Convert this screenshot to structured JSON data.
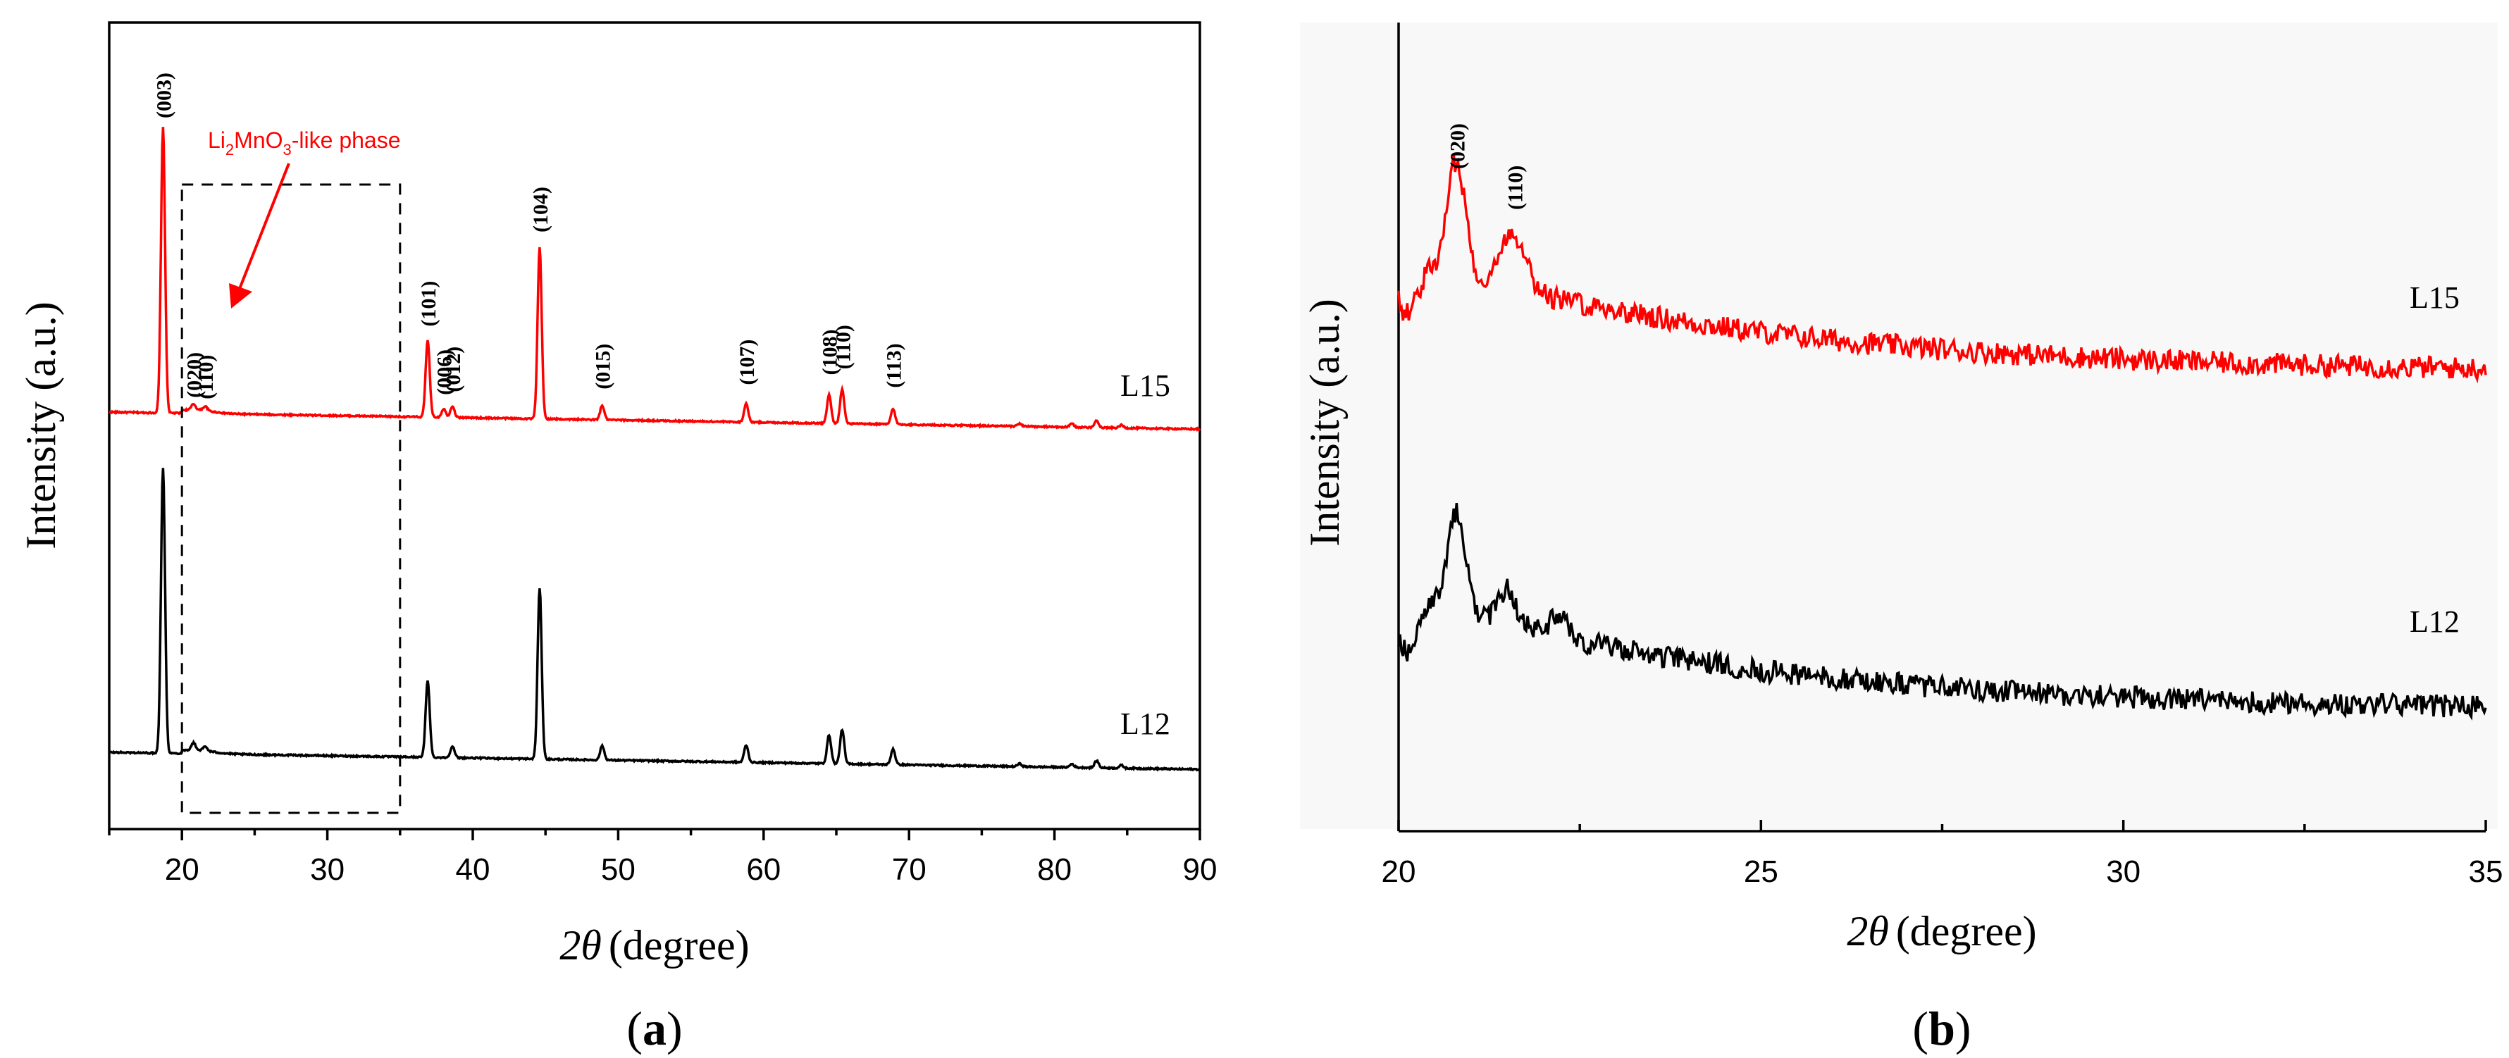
{
  "colors": {
    "L15": "#ff0000",
    "L12": "#000000",
    "annotation": "#ff0000"
  },
  "panel_labels": [
    "a",
    "b"
  ],
  "chart_data": [
    {
      "type": "line",
      "panel": "a",
      "xlabel_symbol": "2θ",
      "xlabel_unit": "(degree)",
      "ylabel": "Intensity (a.u.)",
      "xlim": [
        15,
        90
      ],
      "xticks": [
        20,
        30,
        40,
        50,
        60,
        70,
        80,
        90
      ],
      "y_tick_labels": false,
      "series": [
        {
          "name": "L15",
          "baseline": 100,
          "end_baseline": 94,
          "peaks": [
            [
              18.7,
              100
            ],
            [
              20.8,
              2
            ],
            [
              21.6,
              1.5
            ],
            [
              36.9,
              27
            ],
            [
              38.0,
              3
            ],
            [
              38.6,
              4
            ],
            [
              44.6,
              60
            ],
            [
              48.9,
              5
            ],
            [
              58.8,
              6.5
            ],
            [
              64.5,
              10
            ],
            [
              65.4,
              12
            ],
            [
              68.9,
              5.5
            ],
            [
              77.6,
              1
            ],
            [
              81.2,
              1.2
            ],
            [
              82.9,
              2.5
            ],
            [
              84.6,
              1
            ]
          ]
        },
        {
          "name": "L12",
          "baseline": 0,
          "end_baseline": -6,
          "peaks": [
            [
              18.7,
              100
            ],
            [
              20.8,
              2.5
            ],
            [
              21.6,
              1.5
            ],
            [
              36.9,
              27
            ],
            [
              38.6,
              4
            ],
            [
              44.6,
              60
            ],
            [
              48.9,
              5
            ],
            [
              58.8,
              6
            ],
            [
              64.5,
              10
            ],
            [
              65.4,
              12
            ],
            [
              68.9,
              5.5
            ],
            [
              77.6,
              1
            ],
            [
              81.2,
              1.2
            ],
            [
              82.9,
              2.5
            ],
            [
              84.6,
              1
            ]
          ]
        }
      ],
      "peak_labels": [
        {
          "series": "L15",
          "x": 18.7,
          "text": "(003)"
        },
        {
          "series": "L15",
          "x": 20.8,
          "text": "(020)"
        },
        {
          "series": "L15",
          "x": 21.6,
          "text": "(110)"
        },
        {
          "series": "L15",
          "x": 36.9,
          "text": "(101)"
        },
        {
          "series": "L15",
          "x": 38.0,
          "text": "(006)"
        },
        {
          "series": "L15",
          "x": 38.6,
          "text": "(012)"
        },
        {
          "series": "L15",
          "x": 44.6,
          "text": "(104)"
        },
        {
          "series": "L15",
          "x": 48.9,
          "text": "(015)"
        },
        {
          "series": "L15",
          "x": 58.8,
          "text": "(107)"
        },
        {
          "series": "L15",
          "x": 64.5,
          "text": "(108)"
        },
        {
          "series": "L15",
          "x": 65.4,
          "text": "(110)"
        },
        {
          "series": "L15",
          "x": 68.9,
          "text": "(113)"
        }
      ],
      "annotation": {
        "parts": [
          "Li",
          "2",
          "MnO",
          "3",
          "-like phase"
        ],
        "box_x_range": [
          20,
          35
        ]
      },
      "series_labels": [
        "L15",
        "L12"
      ]
    },
    {
      "type": "line",
      "panel": "b",
      "xlabel_symbol": "2θ",
      "xlabel_unit": "(degree)",
      "ylabel": "Intensity (a.u.)",
      "xlim": [
        20,
        35
      ],
      "xticks": [
        20,
        25,
        30,
        35
      ],
      "y_tick_labels": false,
      "series": [
        {
          "name": "L15",
          "start_level": 22,
          "end_level": 5,
          "peaks": [
            [
              20.8,
              16
            ],
            [
              21.5,
              6
            ],
            [
              21.7,
              5
            ]
          ]
        },
        {
          "name": "L12",
          "start_level": 20,
          "end_level": 3,
          "peaks": [
            [
              20.8,
              14
            ],
            [
              21.5,
              5
            ],
            [
              22.2,
              3
            ]
          ]
        }
      ],
      "peak_labels": [
        {
          "series": "L15",
          "x": 20.8,
          "text": "(020)"
        },
        {
          "series": "L15",
          "x": 21.6,
          "text": "(110)"
        }
      ],
      "series_labels": [
        "L15",
        "L12"
      ]
    }
  ]
}
